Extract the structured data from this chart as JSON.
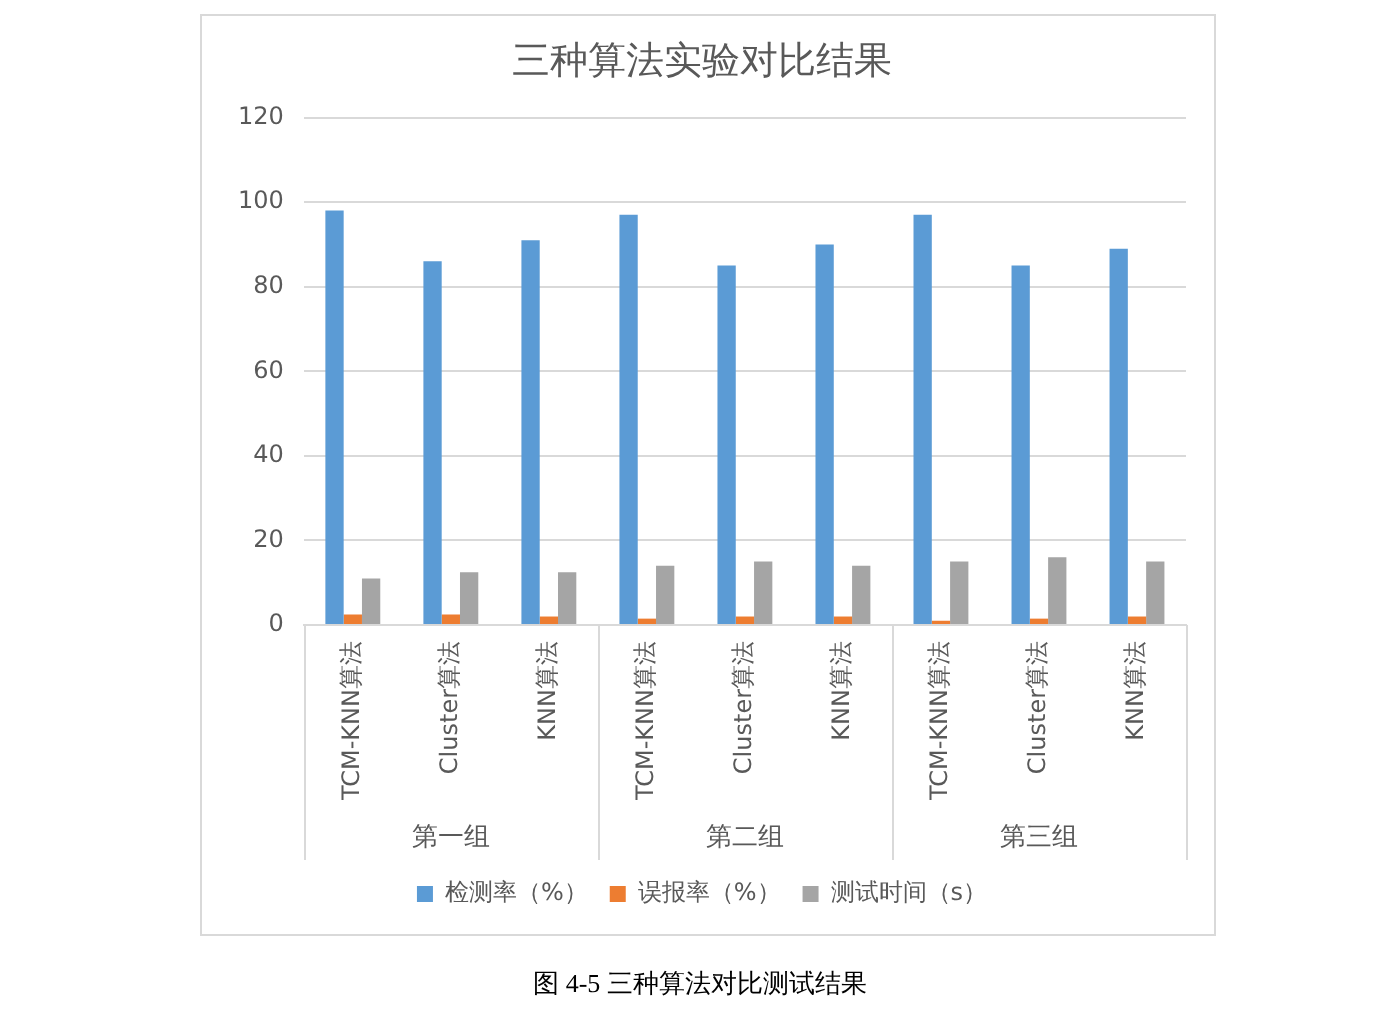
{
  "chart_data": {
    "type": "bar",
    "title": "三种算法实验对比结果",
    "categories": [
      "TCM-KNN算法",
      "Cluster算法",
      "KNN算法",
      "TCM-KNN算法",
      "Cluster算法",
      "KNN算法",
      "TCM-KNN算法",
      "Cluster算法",
      "KNN算法"
    ],
    "series": [
      {
        "name": "检测率（%）",
        "color": "#5b9bd5",
        "values": [
          98,
          86,
          91,
          97,
          85,
          90,
          97,
          85,
          89
        ]
      },
      {
        "name": "误报率（%）",
        "color": "#ed7d31",
        "values": [
          2.5,
          2.5,
          2,
          1.5,
          2,
          2,
          1,
          1.5,
          2
        ]
      },
      {
        "name": "测试时间（s）",
        "color": "#a5a5a5",
        "values": [
          11,
          12.5,
          12.5,
          14,
          15,
          14,
          15,
          16,
          15
        ]
      }
    ],
    "ylim": [
      0,
      120
    ],
    "yticks": [
      0,
      20,
      40,
      60,
      80,
      100,
      120
    ],
    "grid": "y",
    "legend": "bottom",
    "annotations": [
      "第一组",
      "第二组",
      "第三组",
      "图 4-5 三种算法对比测试结果"
    ]
  }
}
